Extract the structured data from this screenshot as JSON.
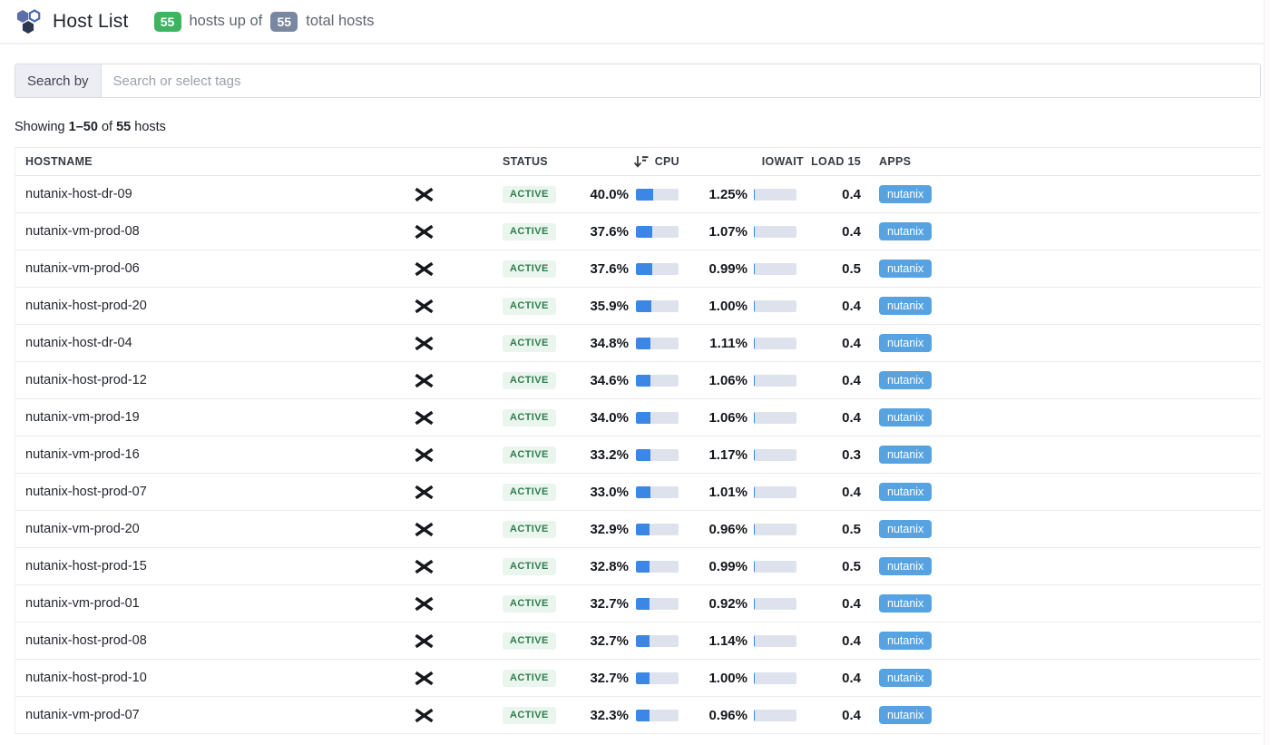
{
  "header": {
    "title": "Host List",
    "hosts_up_count": "55",
    "hosts_up_text": "hosts up of",
    "total_hosts_count": "55",
    "total_hosts_text": "total hosts"
  },
  "search": {
    "label": "Search by",
    "placeholder": "Search or select tags"
  },
  "summary": {
    "prefix": "Showing",
    "range": "1–50",
    "of": "of",
    "total": "55",
    "suffix": "hosts"
  },
  "table": {
    "columns": {
      "hostname": "HOSTNAME",
      "status": "STATUS",
      "cpu": "CPU",
      "iowait": "IOWAIT",
      "load15": "LOAD 15",
      "apps": "APPS"
    },
    "sort": {
      "column": "cpu",
      "direction": "desc",
      "icon": "sort-descending-icon"
    },
    "rows": [
      {
        "hostname": "nutanix-host-dr-09",
        "status": "ACTIVE",
        "cpu": 40.0,
        "iowait": 1.25,
        "load15": 0.4,
        "app": "nutanix"
      },
      {
        "hostname": "nutanix-vm-prod-08",
        "status": "ACTIVE",
        "cpu": 37.6,
        "iowait": 1.07,
        "load15": 0.4,
        "app": "nutanix"
      },
      {
        "hostname": "nutanix-vm-prod-06",
        "status": "ACTIVE",
        "cpu": 37.6,
        "iowait": 0.99,
        "load15": 0.5,
        "app": "nutanix"
      },
      {
        "hostname": "nutanix-host-prod-20",
        "status": "ACTIVE",
        "cpu": 35.9,
        "iowait": 1.0,
        "load15": 0.4,
        "app": "nutanix"
      },
      {
        "hostname": "nutanix-host-dr-04",
        "status": "ACTIVE",
        "cpu": 34.8,
        "iowait": 1.11,
        "load15": 0.4,
        "app": "nutanix"
      },
      {
        "hostname": "nutanix-host-prod-12",
        "status": "ACTIVE",
        "cpu": 34.6,
        "iowait": 1.06,
        "load15": 0.4,
        "app": "nutanix"
      },
      {
        "hostname": "nutanix-vm-prod-19",
        "status": "ACTIVE",
        "cpu": 34.0,
        "iowait": 1.06,
        "load15": 0.4,
        "app": "nutanix"
      },
      {
        "hostname": "nutanix-vm-prod-16",
        "status": "ACTIVE",
        "cpu": 33.2,
        "iowait": 1.17,
        "load15": 0.3,
        "app": "nutanix"
      },
      {
        "hostname": "nutanix-host-prod-07",
        "status": "ACTIVE",
        "cpu": 33.0,
        "iowait": 1.01,
        "load15": 0.4,
        "app": "nutanix"
      },
      {
        "hostname": "nutanix-vm-prod-20",
        "status": "ACTIVE",
        "cpu": 32.9,
        "iowait": 0.96,
        "load15": 0.5,
        "app": "nutanix"
      },
      {
        "hostname": "nutanix-host-prod-15",
        "status": "ACTIVE",
        "cpu": 32.8,
        "iowait": 0.99,
        "load15": 0.5,
        "app": "nutanix"
      },
      {
        "hostname": "nutanix-vm-prod-01",
        "status": "ACTIVE",
        "cpu": 32.7,
        "iowait": 0.92,
        "load15": 0.4,
        "app": "nutanix"
      },
      {
        "hostname": "nutanix-host-prod-08",
        "status": "ACTIVE",
        "cpu": 32.7,
        "iowait": 1.14,
        "load15": 0.4,
        "app": "nutanix"
      },
      {
        "hostname": "nutanix-host-prod-10",
        "status": "ACTIVE",
        "cpu": 32.7,
        "iowait": 1.0,
        "load15": 0.4,
        "app": "nutanix"
      },
      {
        "hostname": "nutanix-vm-prod-07",
        "status": "ACTIVE",
        "cpu": 32.3,
        "iowait": 0.96,
        "load15": 0.4,
        "app": "nutanix"
      }
    ]
  },
  "colors": {
    "up_badge": "#3db560",
    "total_badge": "#7a87a1",
    "status_badge_bg": "#e9f5ed",
    "status_badge_text": "#2e7d4e",
    "bar_fill": "#3c87e6",
    "bar_track": "#dde2ec",
    "app_badge": "#57a3e2"
  }
}
